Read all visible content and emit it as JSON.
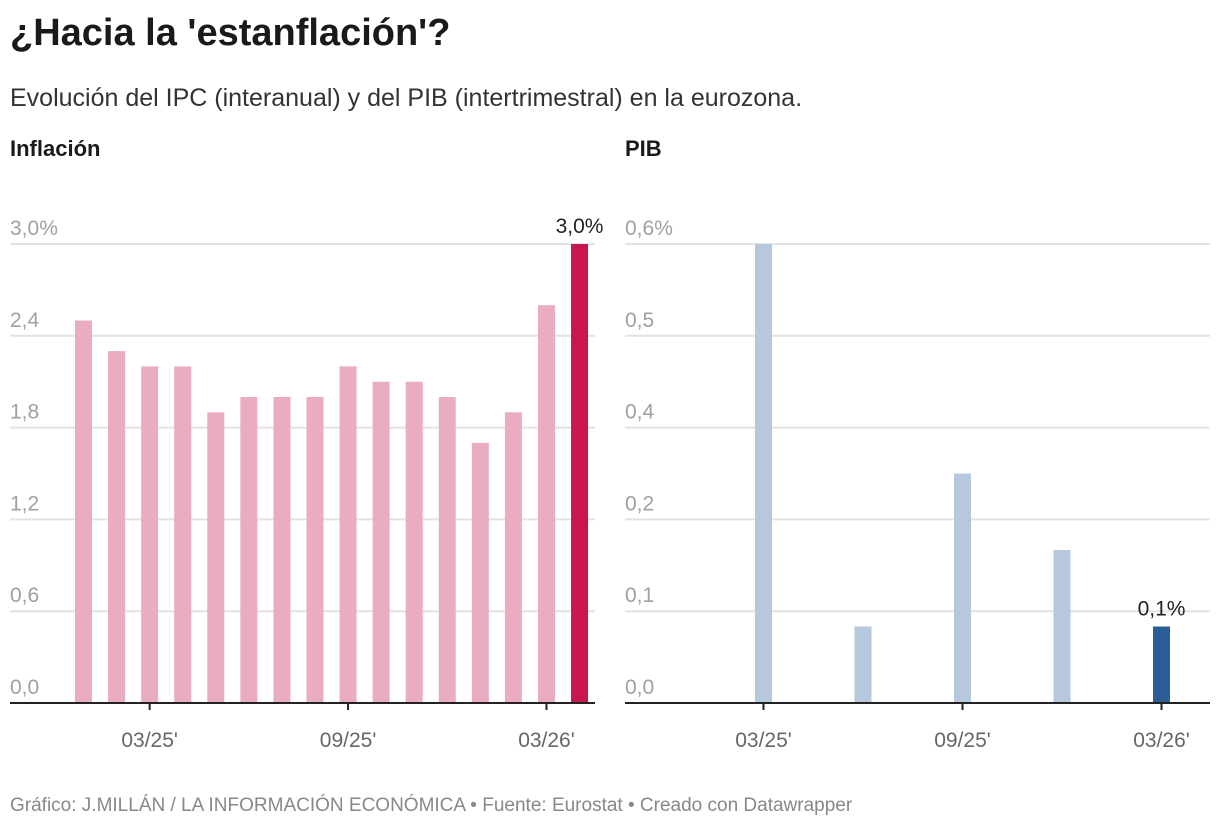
{
  "title": "¿Hacia la 'estanflación'?",
  "subtitle": "Evolución del IPC (interanual) y del PIB (intertrimestral) en la eurozona.",
  "footer": "Gráfico: J.MILLÁN / LA INFORMACIÓN ECONÓMICA • Fuente: Eurostat • Creado con Datawrapper",
  "chart_data": [
    {
      "type": "bar",
      "title": "Inflación",
      "ylim": [
        0,
        3.0
      ],
      "yticks": [
        0,
        0.6,
        1.2,
        1.8,
        2.4,
        3.0
      ],
      "ytick_labels": [
        "0,0",
        "0,6",
        "1,2",
        "1,8",
        "2,4",
        "3,0%"
      ],
      "categories": [
        "01/25",
        "02/25",
        "03/25",
        "04/25",
        "05/25",
        "06/25",
        "07/25",
        "08/25",
        "09/25",
        "10/25",
        "11/25",
        "12/25",
        "01/26",
        "02/26",
        "03/26",
        "04/26"
      ],
      "values": [
        2.5,
        2.3,
        2.2,
        2.2,
        1.9,
        2.0,
        2.0,
        2.0,
        2.2,
        2.1,
        2.1,
        2.0,
        1.7,
        1.9,
        2.6,
        3.0
      ],
      "xtick_labels": [
        {
          "category": "03/25",
          "label": "03/25'"
        },
        {
          "category": "09/25",
          "label": "09/25'"
        },
        {
          "category": "03/26",
          "label": "03/26'"
        }
      ],
      "highlight_label": "3,0%",
      "color": "#eaadbf",
      "highlight_color": "#c8174d",
      "grid": true
    },
    {
      "type": "bar",
      "title": "PIB",
      "ylim": [
        0,
        0.6
      ],
      "yticks": [
        0,
        0.12,
        0.24,
        0.36,
        0.48,
        0.6
      ],
      "ytick_labels": [
        "0,0",
        "0,1",
        "0,2",
        "0,4",
        "0,5",
        "0,6%"
      ],
      "categories": [
        "03/25",
        "06/25",
        "09/25",
        "12/25",
        "03/26"
      ],
      "values": [
        0.6,
        0.1,
        0.3,
        0.2,
        0.1
      ],
      "xtick_labels": [
        {
          "category": "03/25",
          "label": "03/25'"
        },
        {
          "category": "09/25",
          "label": "09/25'"
        },
        {
          "category": "03/26",
          "label": "03/26'"
        }
      ],
      "highlight_label": "0,1%",
      "color": "#b6c8de",
      "highlight_color": "#2b5d96",
      "grid": true
    }
  ]
}
